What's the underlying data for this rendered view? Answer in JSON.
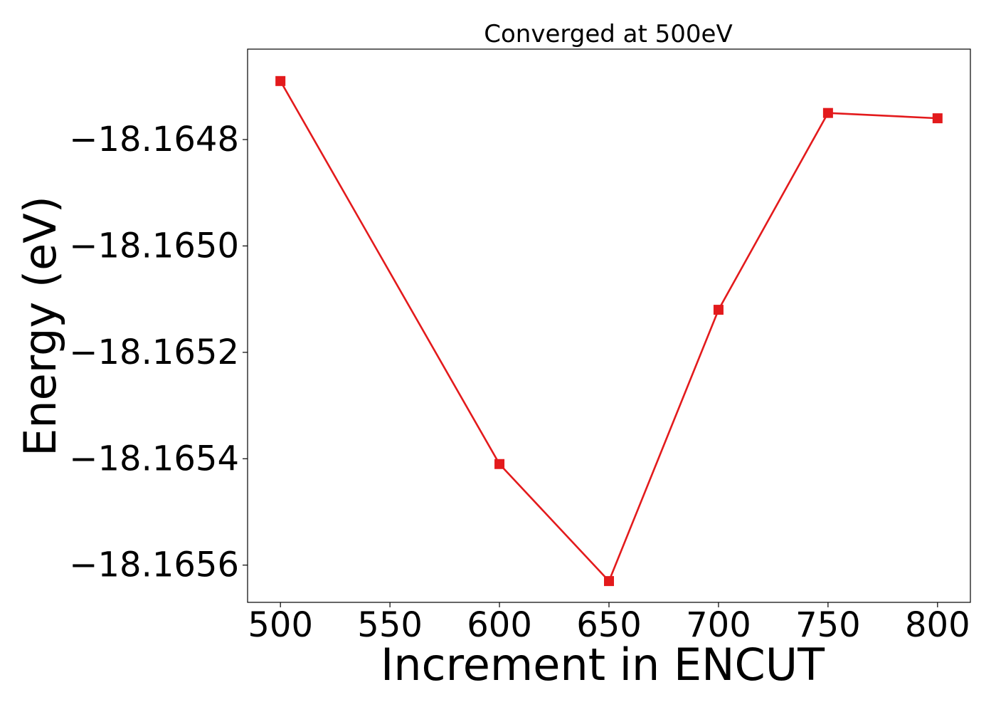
{
  "chart_data": {
    "type": "line",
    "title": "Converged at 500eV",
    "xlabel": "Increment in ENCUT",
    "ylabel": "Energy (eV)",
    "x": [
      500,
      600,
      650,
      700,
      750,
      800
    ],
    "series": [
      {
        "values": [
          -18.16469,
          -18.16541,
          -18.16563,
          -18.16512,
          -18.16475,
          -18.16476
        ],
        "color": "#e31a1c",
        "marker": "square"
      }
    ],
    "xticks": [
      500,
      550,
      600,
      650,
      700,
      750,
      800
    ],
    "xtick_labels": [
      "500",
      "550",
      "600",
      "650",
      "700",
      "750",
      "800"
    ],
    "yticks": [
      -18.1648,
      -18.165,
      -18.1652,
      -18.1654,
      -18.1656
    ],
    "ytick_labels": [
      "−18.1648",
      "−18.1650",
      "−18.1652",
      "−18.1654",
      "−18.1656"
    ],
    "xlim": [
      485,
      815
    ],
    "ylim": [
      -18.16567,
      -18.16463
    ],
    "grid": false,
    "legend": "none"
  }
}
